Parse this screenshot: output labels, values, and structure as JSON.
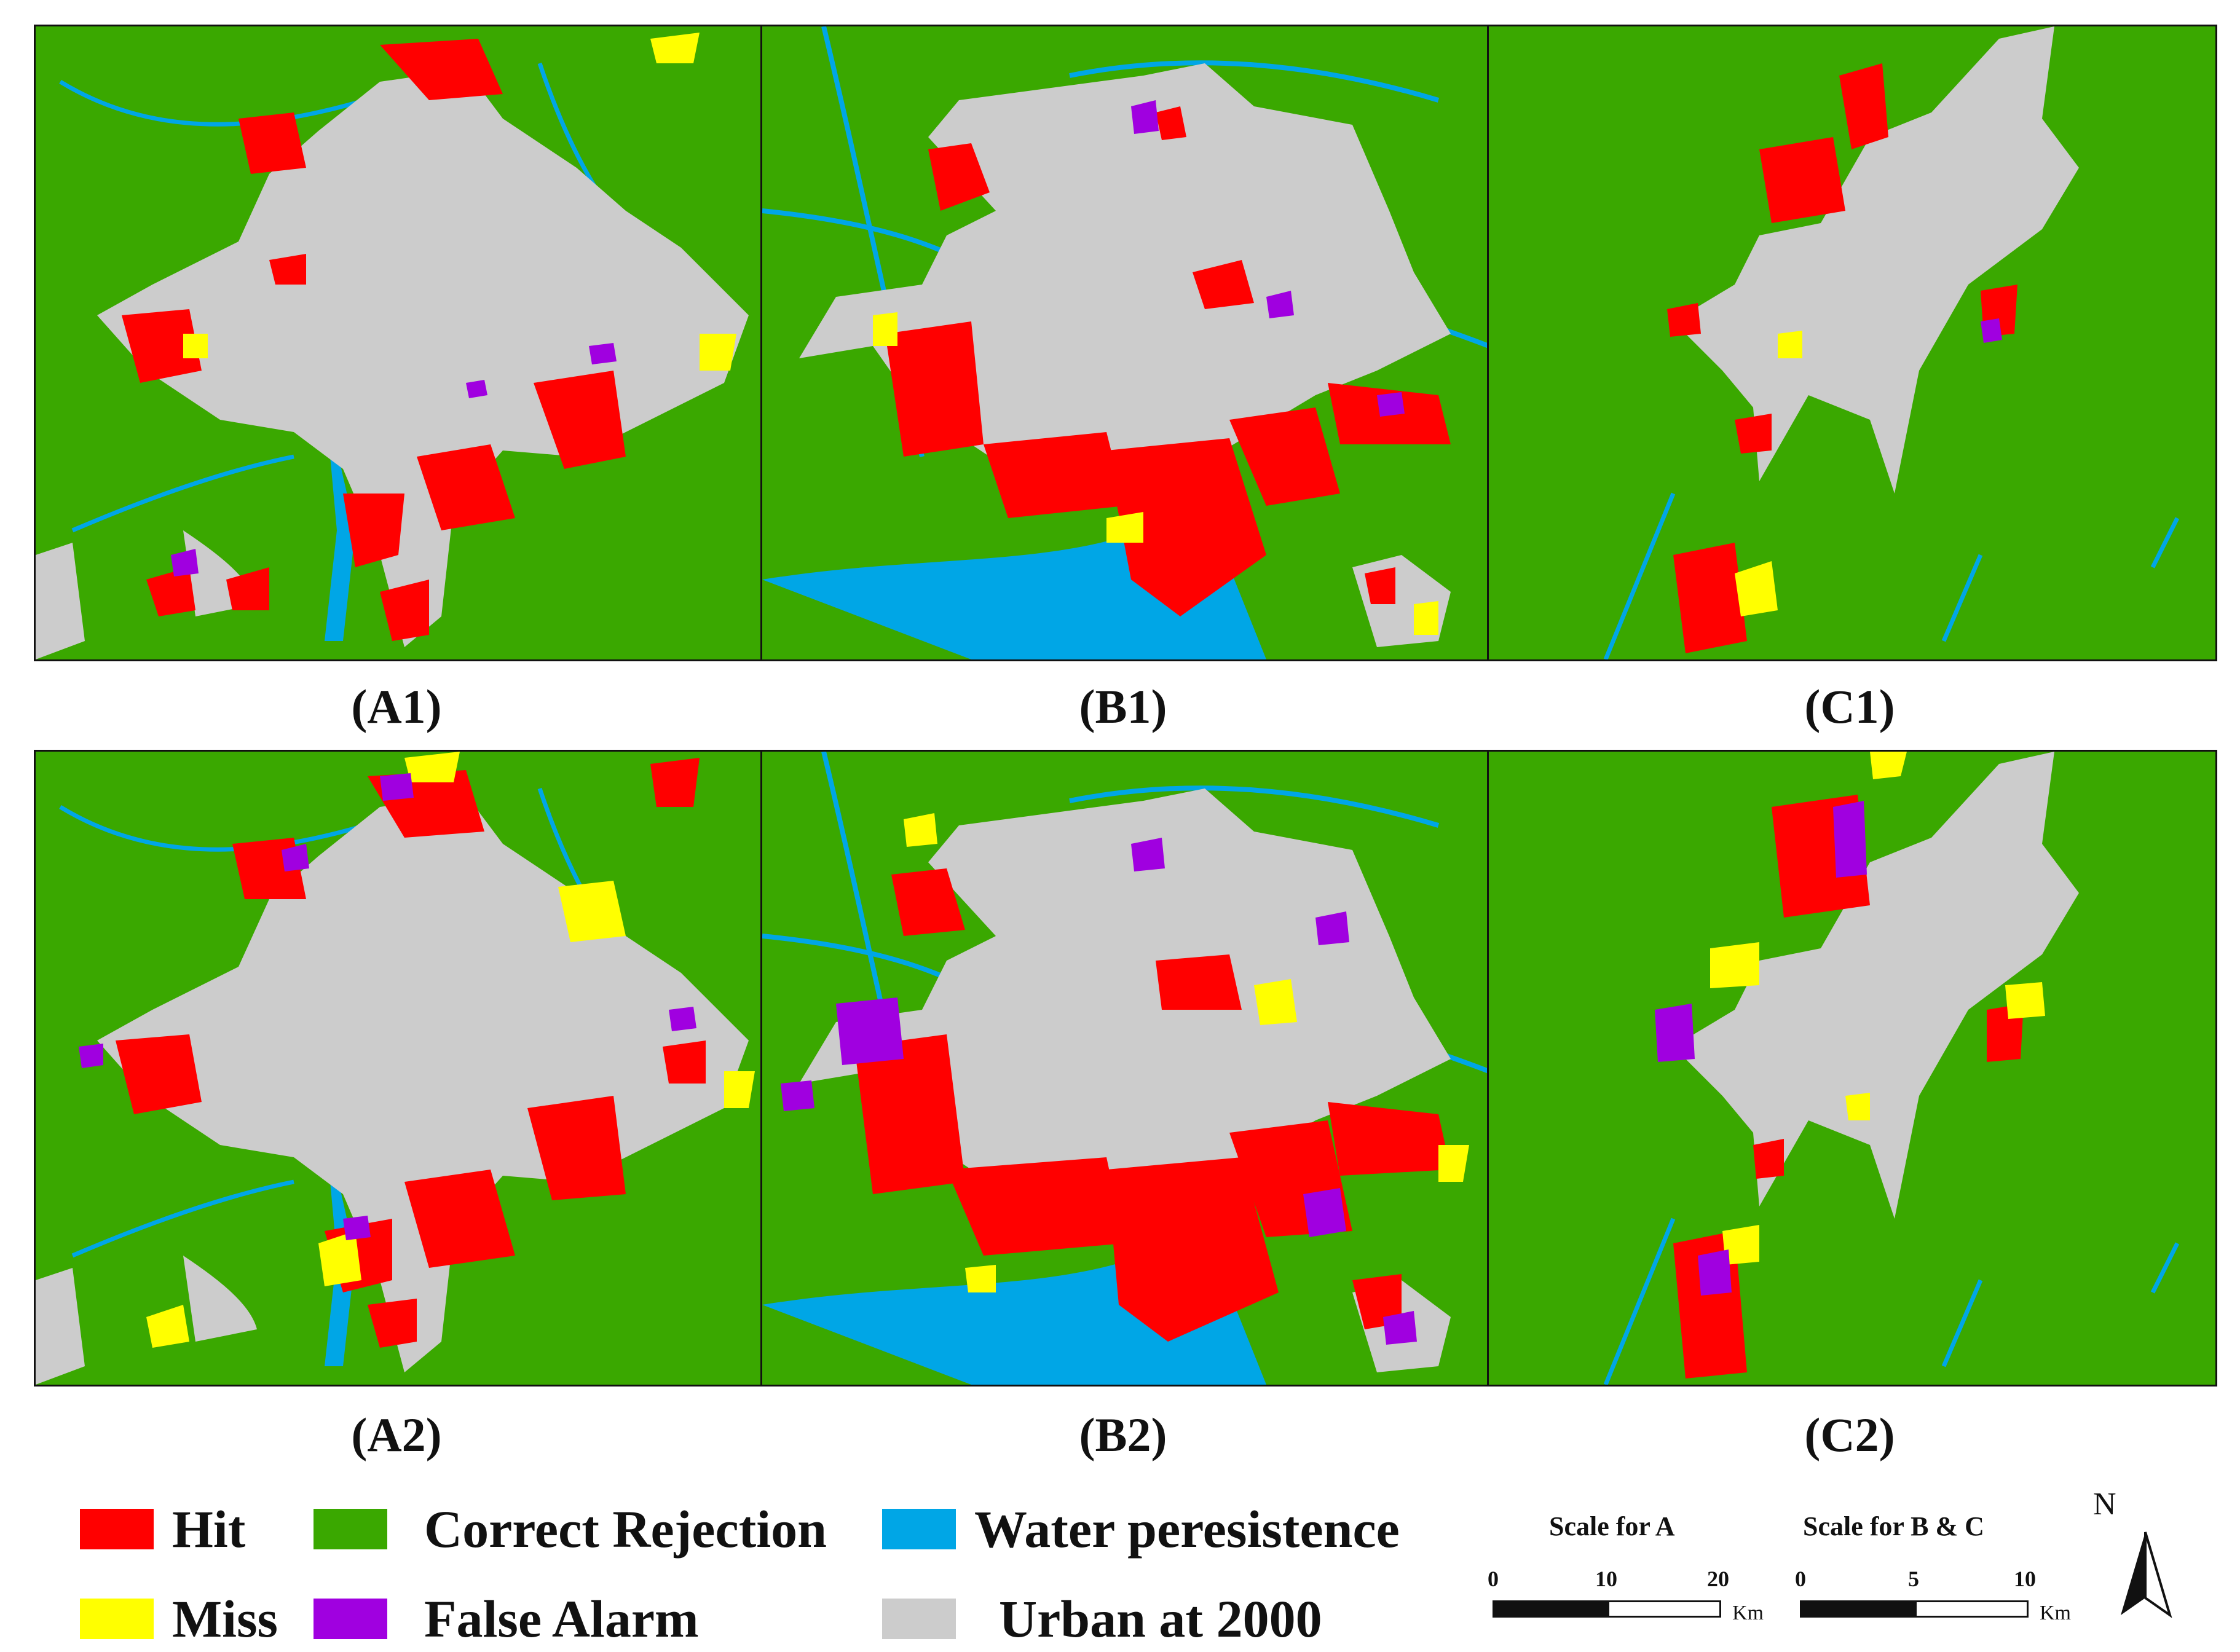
{
  "panels": [
    {
      "id": "A1",
      "label": "(A1)"
    },
    {
      "id": "B1",
      "label": "(B1)"
    },
    {
      "id": "C1",
      "label": "(C1)"
    },
    {
      "id": "A2",
      "label": "(A2)"
    },
    {
      "id": "B2",
      "label": "(B2)"
    },
    {
      "id": "C2",
      "label": "(C2)"
    }
  ],
  "colors": {
    "hit": "#ff0000",
    "miss": "#ffff00",
    "correct_rejection": "#3aa800",
    "false_alarm": "#a000e0",
    "water": "#00a6e6",
    "urban": "#cccccc"
  },
  "legend": {
    "hit": "Hit",
    "miss": "Miss",
    "correct_rejection": "Correct Rejection",
    "false_alarm": "False Alarm",
    "water": "Water peresistence",
    "urban": "Urban at 2000"
  },
  "scale_a": {
    "title": "Scale for A",
    "ticks": [
      "0",
      "10",
      "20"
    ],
    "unit": "Km"
  },
  "scale_bc": {
    "title": "Scale for B & C",
    "ticks": [
      "0",
      "5",
      "10"
    ],
    "unit": "Km"
  },
  "north": {
    "label": "N"
  }
}
